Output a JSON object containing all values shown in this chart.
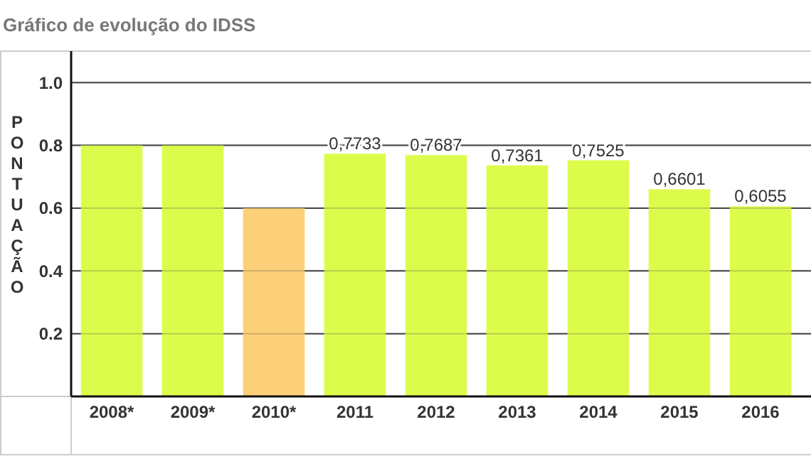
{
  "chart_data": {
    "type": "bar",
    "title": "Gráfico de evolução do IDSS",
    "ylabel": "PONTUAÇÃO",
    "categories": [
      "2008*",
      "2009*",
      "2010*",
      "2011",
      "2012",
      "2013",
      "2014",
      "2015",
      "2016"
    ],
    "values": [
      0.8,
      0.8,
      0.6,
      0.7733,
      0.7687,
      0.7361,
      0.7525,
      0.6601,
      0.6055
    ],
    "colors": [
      "#dcfc4c",
      "#dcfc4c",
      "#fcd078",
      "#dcfc4c",
      "#dcfc4c",
      "#dcfc4c",
      "#dcfc4c",
      "#dcfc4c",
      "#dcfc4c"
    ],
    "value_labels": [
      null,
      null,
      null,
      "0,7733",
      "0,7687",
      "0,7361",
      "0,7525",
      "0,6601",
      "0,6055"
    ],
    "ylim": [
      0,
      1.1
    ],
    "yticks": [
      {
        "value": 0,
        "label": null
      },
      {
        "value": 0.2,
        "label": "0.2"
      },
      {
        "value": 0.4,
        "label": "0.4"
      },
      {
        "value": 0.6,
        "label": "0.6"
      },
      {
        "value": 0.8,
        "label": "0.8"
      },
      {
        "value": 1,
        "label": "1.0"
      }
    ],
    "grid": "y"
  }
}
